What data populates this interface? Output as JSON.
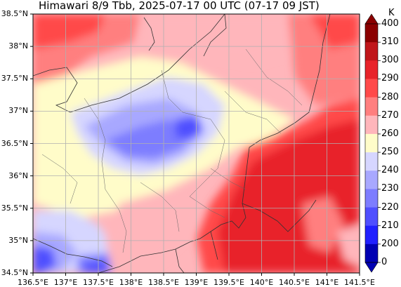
{
  "title": "Himawari 8/9 Tbb, 2025-07-17 00 UTC (07-17 09 JST)",
  "colorbar": {
    "unit": "K",
    "ticks": [
      "400",
      "310",
      "300",
      "290",
      "280",
      "270",
      "260",
      "250",
      "240",
      "230",
      "220",
      "210",
      "200",
      "0"
    ],
    "colors": [
      "#8b0000",
      "#c0161a",
      "#e8232a",
      "#ff4a4a",
      "#ff7f7f",
      "#ffb6bb",
      "#fffcc9",
      "#d6d6ff",
      "#a8a8ff",
      "#7d7dff",
      "#4f4fff",
      "#2020ff",
      "#0000b3"
    ],
    "arrow_colors": {
      "top": "#8b0000",
      "bottom": "#0000b3"
    }
  },
  "axes": {
    "y_labels": [
      "38.5°N",
      "38°N",
      "37.5°N",
      "37°N",
      "36.5°N",
      "36°N",
      "35.5°N",
      "35°N",
      "34.5°N"
    ],
    "x_labels": [
      "136.5°E",
      "137°E",
      "137.5°E",
      "138°E",
      "138.5°E",
      "139°E",
      "139.5°E",
      "140°E",
      "140.5°E",
      "141°E",
      "141.5°E"
    ],
    "lat_range": [
      34.5,
      38.5
    ],
    "lon_range": [
      136.5,
      141.5
    ],
    "grid": true
  }
}
